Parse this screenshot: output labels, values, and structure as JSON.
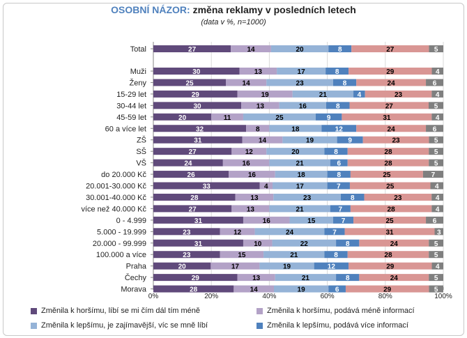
{
  "header": {
    "title_highlight": "OSOBNÍ NÁZOR:",
    "title_rest": "změna reklamy v posledních letech",
    "subtitle": "(data v %, n=1000)"
  },
  "colors": {
    "series": [
      "#604a7b",
      "#b3a2c7",
      "#95b3d7",
      "#4f81bd",
      "#d99694",
      "#7f7f7f"
    ],
    "label_dark": "#ffffff",
    "label_light": "#000000"
  },
  "chart_data": {
    "type": "bar",
    "orientation": "horizontal",
    "stacked": true,
    "percent": true,
    "xlim": [
      0,
      100
    ],
    "x_ticks": [
      "0%",
      "20%",
      "40%",
      "60%",
      "80%",
      "100%"
    ],
    "grid": true,
    "legend_position": "bottom",
    "categories": [
      "Total",
      "Muži",
      "Ženy",
      "15-29 let",
      "30-44 let",
      "45-59 let",
      "60 a více let",
      "ZŠ",
      "SŠ",
      "VŠ",
      "do 20.000 Kč",
      "20.001-30.000 Kč",
      "30.001-40.000 Kč",
      "více než 40.000 Kč",
      "0 - 4.999",
      "5.000 - 19.999",
      "20.000 - 99.999",
      "100.000 a více",
      "Praha",
      "Čechy",
      "Morava"
    ],
    "gap_after_index": 0,
    "series": [
      {
        "name": "Změnila k horšímu, líbí se mi čím dál tím méně",
        "values": [
          27,
          30,
          25,
          29,
          30,
          20,
          32,
          31,
          27,
          24,
          26,
          33,
          28,
          27,
          31,
          23,
          31,
          23,
          20,
          29,
          28
        ]
      },
      {
        "name": "Změnila k horšímu, podává méně informací",
        "values": [
          14,
          13,
          14,
          19,
          13,
          11,
          8,
          14,
          12,
          16,
          16,
          4,
          13,
          13,
          16,
          12,
          10,
          15,
          17,
          13,
          14
        ]
      },
      {
        "name": "Změnila k lepšímu, je zajímavější, víc se mně líbí",
        "values": [
          20,
          17,
          23,
          21,
          16,
          25,
          18,
          19,
          20,
          21,
          18,
          17,
          23,
          21,
          15,
          24,
          22,
          21,
          19,
          21,
          19
        ]
      },
      {
        "name": "Změnila k lepšímu, podává více informací",
        "values": [
          8,
          8,
          8,
          4,
          8,
          9,
          12,
          9,
          8,
          6,
          8,
          7,
          8,
          7,
          7,
          7,
          8,
          8,
          12,
          8,
          6
        ]
      },
      {
        "name": "",
        "values": [
          27,
          29,
          24,
          23,
          27,
          31,
          24,
          23,
          28,
          28,
          25,
          25,
          23,
          28,
          25,
          31,
          24,
          28,
          29,
          24,
          29
        ]
      },
      {
        "name": "",
        "values": [
          5,
          4,
          6,
          4,
          5,
          4,
          6,
          5,
          5,
          5,
          7,
          4,
          4,
          4,
          6,
          3,
          5,
          5,
          4,
          5,
          5
        ]
      }
    ]
  }
}
